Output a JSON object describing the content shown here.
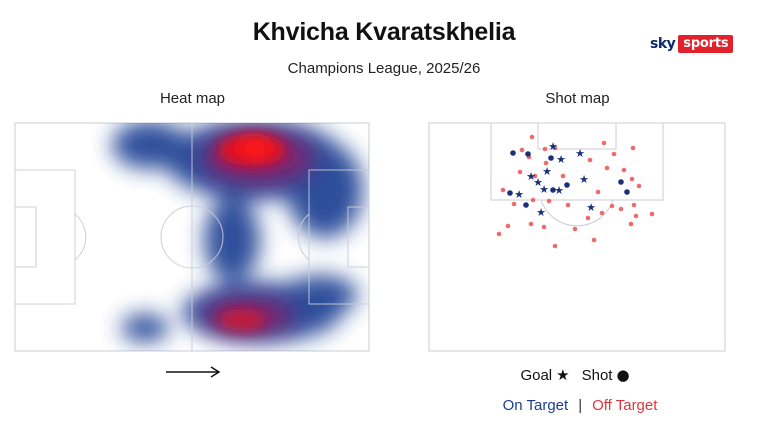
{
  "header": {
    "title": "Khvicha Kvaratskhelia",
    "subtitle": "Champions League, 2025/26"
  },
  "logo": {
    "sky": "sky",
    "sports": "sports"
  },
  "heatmap": {
    "label": "Heat map",
    "direction_icon": "arrow-right-icon",
    "colors": {
      "low": "#1b3d8f",
      "high": "#e8101a"
    }
  },
  "shotmap": {
    "label": "Shot map",
    "colors": {
      "on_target": "#1b3d8f",
      "off_target": "#f06060"
    }
  },
  "legend": {
    "goal": "Goal",
    "goal_symbol": "★",
    "shot": "Shot",
    "shot_symbol": "●",
    "on_target": "On Target",
    "separator": "|",
    "off_target": "Off Target"
  }
}
